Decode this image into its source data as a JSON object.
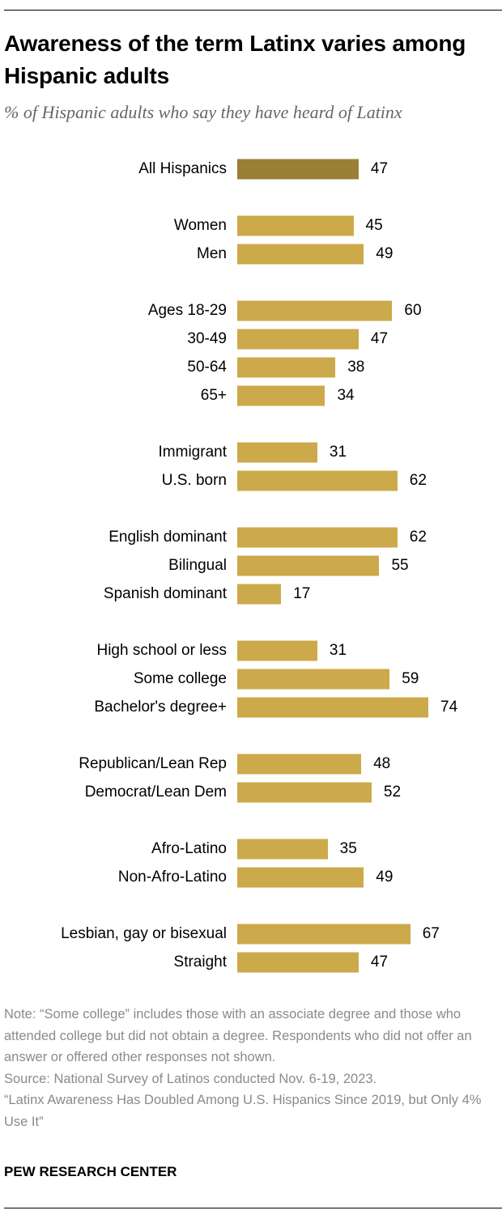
{
  "title": "Awareness of the term Latinx varies among Hispanic adults",
  "subtitle": "% of Hispanic adults who say they have heard of Latinx",
  "colors": {
    "highlight": "#9a7f35",
    "bar": "#cca94a"
  },
  "chart_data": {
    "type": "bar",
    "orientation": "horizontal",
    "xlim": [
      0,
      100
    ],
    "grid": false,
    "groups": [
      {
        "categories": [
          "All Hispanics"
        ],
        "values": [
          47
        ],
        "highlight": true
      },
      {
        "categories": [
          "Women",
          "Men"
        ],
        "values": [
          45,
          49
        ]
      },
      {
        "categories": [
          "Ages 18-29",
          "30-49",
          "50-64",
          "65+"
        ],
        "values": [
          60,
          47,
          38,
          34
        ]
      },
      {
        "categories": [
          "Immigrant",
          "U.S. born"
        ],
        "values": [
          31,
          62
        ]
      },
      {
        "categories": [
          "English dominant",
          "Bilingual",
          "Spanish dominant"
        ],
        "values": [
          62,
          55,
          17
        ]
      },
      {
        "categories": [
          "High school or less",
          "Some college",
          "Bachelor's degree+"
        ],
        "values": [
          31,
          59,
          74
        ]
      },
      {
        "categories": [
          "Republican/Lean Rep",
          "Democrat/Lean Dem"
        ],
        "values": [
          48,
          52
        ]
      },
      {
        "categories": [
          "Afro-Latino",
          "Non-Afro-Latino"
        ],
        "values": [
          35,
          49
        ]
      },
      {
        "categories": [
          "Lesbian, gay or bisexual",
          "Straight"
        ],
        "values": [
          67,
          47
        ]
      }
    ]
  },
  "notes": {
    "note": "Note: “Some college” includes those with an associate degree and those who attended college but did not obtain a degree. Respondents who did not offer an answer or offered other responses not shown.",
    "source": "Source: National Survey of Latinos conducted Nov. 6-19, 2023.\n“Latinx Awareness Has Doubled Among U.S. Hispanics Since 2019, but Only 4% Use It”"
  },
  "brand": "PEW RESEARCH CENTER"
}
